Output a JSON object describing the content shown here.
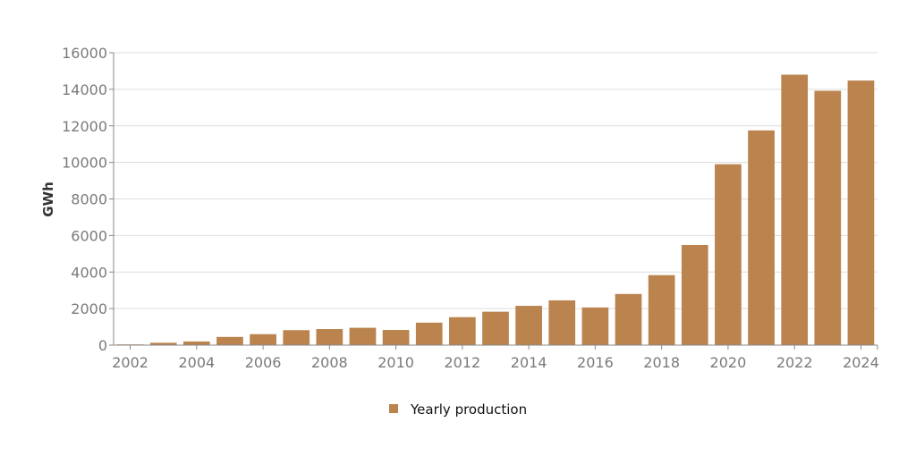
{
  "chart_data": {
    "type": "bar",
    "ylabel": "GWh",
    "xlabel": "",
    "ylim": [
      0,
      16000
    ],
    "y_ticks": [
      0,
      2000,
      4000,
      6000,
      8000,
      10000,
      12000,
      14000,
      16000
    ],
    "x_tick_labels": [
      "2002",
      "2004",
      "2006",
      "2008",
      "2010",
      "2012",
      "2014",
      "2016",
      "2018",
      "2020",
      "2022",
      "2024"
    ],
    "grid": "horizontal",
    "legend_position": "bottom-center",
    "categories": [
      "2002",
      "2003",
      "2004",
      "2005",
      "2006",
      "2007",
      "2008",
      "2009",
      "2010",
      "2011",
      "2012",
      "2013",
      "2014",
      "2015",
      "2016",
      "2017",
      "2018",
      "2019",
      "2020",
      "2021",
      "2022",
      "2023",
      "2024"
    ],
    "series": [
      {
        "name": "Yearly production",
        "color": "#bb844e",
        "values": [
          40,
          130,
          200,
          450,
          600,
          820,
          880,
          950,
          830,
          1230,
          1530,
          1830,
          2150,
          2450,
          2060,
          2800,
          3830,
          5480,
          9900,
          11750,
          14800,
          13920,
          14480
        ]
      }
    ]
  }
}
